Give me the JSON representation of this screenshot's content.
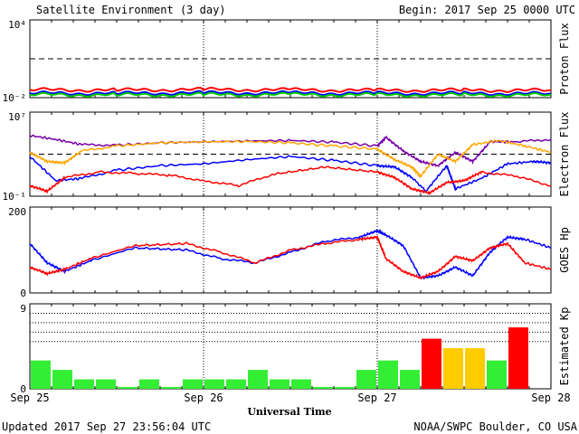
{
  "header": {
    "title": "Satellite Environment (3 day)",
    "begin": "Begin:  2017 Sep 25 0000 UTC"
  },
  "footer": {
    "updated": "Updated 2017 Sep 27 23:56:04 UTC",
    "source": "NOAA/SWPC Boulder, CO USA"
  },
  "chart_data": [
    {
      "type": "line",
      "panel": "proton",
      "ylabel": "Proton Flux",
      "yscale": "log",
      "ylim": [
        0.01,
        10000
      ],
      "ytick_labels": [
        "10⁴",
        "10⁻²"
      ],
      "threshold": 10,
      "x_range_days": [
        0,
        3
      ],
      "series": [
        {
          "color": "#ff0000",
          "x": [
            0,
            0.5,
            1,
            1.5,
            2,
            2.5,
            3
          ],
          "y": [
            0.04,
            0.038,
            0.042,
            0.039,
            0.036,
            0.037,
            0.036
          ]
        },
        {
          "color": "#0000ff",
          "x": [
            0,
            0.5,
            1,
            1.5,
            2,
            2.5,
            3
          ],
          "y": [
            0.022,
            0.021,
            0.023,
            0.022,
            0.021,
            0.021,
            0.02
          ]
        },
        {
          "color": "#00cc00",
          "x": [
            0,
            0.5,
            1,
            1.5,
            2,
            2.5,
            3
          ],
          "y": [
            0.017,
            0.016,
            0.017,
            0.017,
            0.016,
            0.016,
            0.016
          ]
        }
      ]
    },
    {
      "type": "line",
      "panel": "electron",
      "ylabel": "Electron Flux",
      "yscale": "log",
      "ylim": [
        0.1,
        10000000
      ],
      "ytick_labels": [
        "10⁷",
        "10⁻¹"
      ],
      "threshold": 1000,
      "x_range_days": [
        0,
        3
      ],
      "series": [
        {
          "color": "#7700aa",
          "x": [
            0,
            0.15,
            0.3,
            0.5,
            0.75,
            1,
            1.25,
            1.5,
            1.75,
            2,
            2.05,
            2.15,
            2.25,
            2.35,
            2.45,
            2.55,
            2.65,
            2.8,
            3
          ],
          "y": [
            60000,
            25000,
            8000,
            7000,
            12000,
            15000,
            18000,
            20000,
            14000,
            6000,
            40000,
            2000,
            200,
            80,
            1500,
            200,
            15000,
            15000,
            25000
          ]
        },
        {
          "color": "#ffa500",
          "x": [
            0,
            0.1,
            0.2,
            0.3,
            0.5,
            0.75,
            1,
            1.25,
            1.5,
            1.75,
            2,
            2.1,
            2.2,
            2.25,
            2.35,
            2.45,
            2.55,
            2.7,
            2.85,
            3
          ],
          "y": [
            1500,
            200,
            150,
            2000,
            6000,
            12000,
            15000,
            16000,
            12000,
            6000,
            3000,
            300,
            60,
            8,
            1000,
            200,
            8000,
            20000,
            6000,
            1500
          ]
        },
        {
          "color": "#0000ff",
          "x": [
            0,
            0.15,
            0.3,
            0.5,
            0.75,
            1,
            1.25,
            1.5,
            1.75,
            2,
            2.1,
            2.2,
            2.28,
            2.4,
            2.45,
            2.6,
            2.75,
            2.9,
            3
          ],
          "y": [
            600,
            3,
            5,
            30,
            80,
            120,
            300,
            600,
            250,
            80,
            60,
            6,
            0.3,
            80,
            0.5,
            5,
            120,
            200,
            150
          ]
        },
        {
          "color": "#ff0000",
          "x": [
            0,
            0.1,
            0.2,
            0.4,
            0.6,
            0.8,
            1,
            1.2,
            1.4,
            1.7,
            2,
            2.1,
            2.2,
            2.3,
            2.4,
            2.5,
            2.6,
            2.8,
            3
          ],
          "y": [
            1,
            0.3,
            6,
            20,
            15,
            10,
            3,
            1,
            12,
            60,
            20,
            6,
            0.5,
            0.2,
            2,
            3,
            20,
            8,
            1
          ]
        }
      ]
    },
    {
      "type": "line",
      "panel": "goes_hp",
      "ylabel": "GOES Hp",
      "ylim": [
        0,
        200
      ],
      "ytick_labels": [
        "200",
        "0"
      ],
      "x_range_days": [
        0,
        3
      ],
      "series": [
        {
          "color": "#0000ff",
          "x": [
            0,
            0.1,
            0.2,
            0.35,
            0.6,
            0.9,
            1.1,
            1.3,
            1.5,
            1.7,
            1.9,
            2,
            2.05,
            2.15,
            2.25,
            2.35,
            2.45,
            2.55,
            2.65,
            2.75,
            2.85,
            3
          ],
          "y": [
            115,
            70,
            50,
            75,
            105,
            100,
            80,
            70,
            95,
            120,
            130,
            145,
            135,
            110,
            35,
            40,
            60,
            40,
            95,
            130,
            125,
            105
          ]
        },
        {
          "color": "#ff0000",
          "x": [
            0,
            0.1,
            0.2,
            0.35,
            0.6,
            0.9,
            1.1,
            1.3,
            1.5,
            1.7,
            1.9,
            2,
            2.05,
            2.15,
            2.25,
            2.35,
            2.45,
            2.55,
            2.65,
            2.75,
            2.85,
            3
          ],
          "y": [
            60,
            45,
            55,
            80,
            110,
            115,
            95,
            70,
            100,
            115,
            125,
            130,
            80,
            50,
            35,
            50,
            85,
            75,
            105,
            115,
            70,
            55
          ]
        }
      ]
    },
    {
      "type": "bar",
      "panel": "kp",
      "ylabel": "Estimated Kp",
      "ylim": [
        0,
        9
      ],
      "ytick_labels": [
        "9",
        "0"
      ],
      "xlabel": "Universal Time",
      "x_tick_labels": [
        "Sep 25",
        "Sep 26",
        "Sep 27",
        "Sep 28"
      ],
      "bar_width_days": 0.125,
      "colors": {
        "quiet": "#33ee33",
        "active": "#ffcc00",
        "storm": "#ff0000"
      },
      "values": [
        3,
        2,
        1,
        1,
        0.2,
        1,
        0.2,
        1,
        1,
        1,
        2,
        1,
        1,
        0.2,
        0.2,
        2,
        3,
        2,
        5.3,
        4.3,
        4.3,
        3,
        6.5
      ]
    }
  ]
}
